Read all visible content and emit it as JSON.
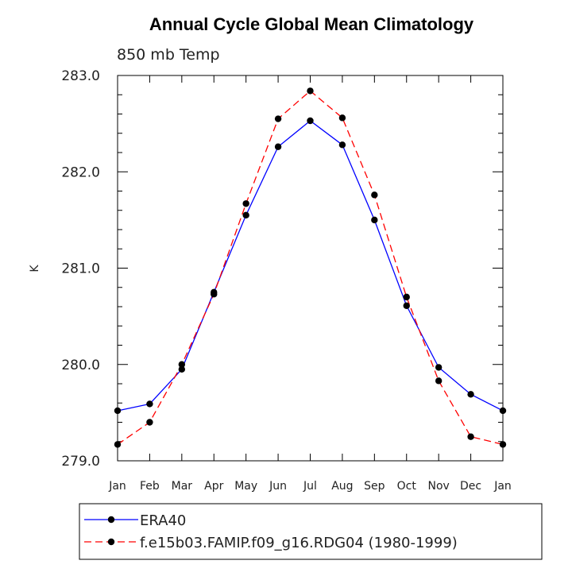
{
  "chart_data": {
    "type": "line",
    "title": "Annual Cycle Global Mean Climatology",
    "subtitle": "850 mb Temp",
    "xlabel": "",
    "ylabel": "K",
    "categories": [
      "Jan",
      "Feb",
      "Mar",
      "Apr",
      "May",
      "Jun",
      "Jul",
      "Aug",
      "Sep",
      "Oct",
      "Nov",
      "Dec",
      "Jan"
    ],
    "ylim": [
      279.0,
      283.0
    ],
    "yticks": [
      "279.0",
      "280.0",
      "281.0",
      "282.0",
      "283.0"
    ],
    "series": [
      {
        "name": "ERA40",
        "color": "#0000ff",
        "dash": "solid",
        "values": [
          279.52,
          279.59,
          279.95,
          280.75,
          281.55,
          282.26,
          282.53,
          282.28,
          281.5,
          280.61,
          279.97,
          279.69,
          279.52
        ]
      },
      {
        "name": "f.e15b03.FAMIP.f09_g16.RDG04 (1980-1999)",
        "color": "#ff0000",
        "dash": "dashed",
        "values": [
          279.17,
          279.4,
          280.0,
          280.73,
          281.67,
          282.55,
          282.84,
          282.56,
          281.76,
          280.7,
          279.83,
          279.25,
          279.17
        ]
      }
    ],
    "grid": false,
    "legend_position": "bottom"
  }
}
